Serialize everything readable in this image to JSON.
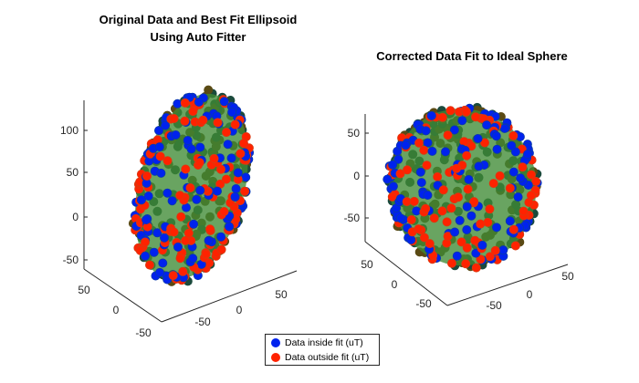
{
  "chart_data": [
    {
      "type": "scatter3d",
      "title_lines": [
        "Original Data and Best Fit Ellipsoid",
        "Using Auto Fitter"
      ],
      "surface": {
        "shape": "ellipsoid",
        "center": [
          0,
          0,
          35
        ],
        "radii": [
          55,
          55,
          100
        ],
        "tilt_deg": 20,
        "color": "#3f8a35"
      },
      "n_points": 420,
      "x_ticks": [
        "-50",
        "0",
        "50"
      ],
      "y_ticks": [
        "50",
        "0",
        "-50"
      ],
      "z_ticks": [
        "100",
        "50",
        "0",
        "-50"
      ],
      "x_tick_values": [
        -50,
        0,
        50
      ],
      "y_tick_values": [
        50,
        0,
        -50
      ],
      "z_tick_values": [
        100,
        50,
        0,
        -50
      ]
    },
    {
      "type": "scatter3d",
      "title_lines": [
        "Corrected Data Fit to Ideal Sphere"
      ],
      "surface": {
        "shape": "sphere",
        "center": [
          0,
          0,
          0
        ],
        "radii": [
          80,
          80,
          80
        ],
        "tilt_deg": 0,
        "color": "#3f8a35"
      },
      "n_points": 420,
      "x_ticks": [
        "-50",
        "0",
        "50"
      ],
      "y_ticks": [
        "50",
        "0",
        "-50"
      ],
      "z_ticks": [
        "50",
        "0",
        "-50"
      ],
      "x_tick_values": [
        -50,
        0,
        50
      ],
      "y_tick_values": [
        50,
        0,
        -50
      ],
      "z_tick_values": [
        50,
        0,
        -50
      ]
    }
  ],
  "legend": {
    "placement": "bottom-center",
    "entries": [
      {
        "label": "Data inside fit (uT)",
        "color": "#0022ee"
      },
      {
        "label": "Data outside fit (uT)",
        "color": "#ff2200"
      }
    ]
  }
}
